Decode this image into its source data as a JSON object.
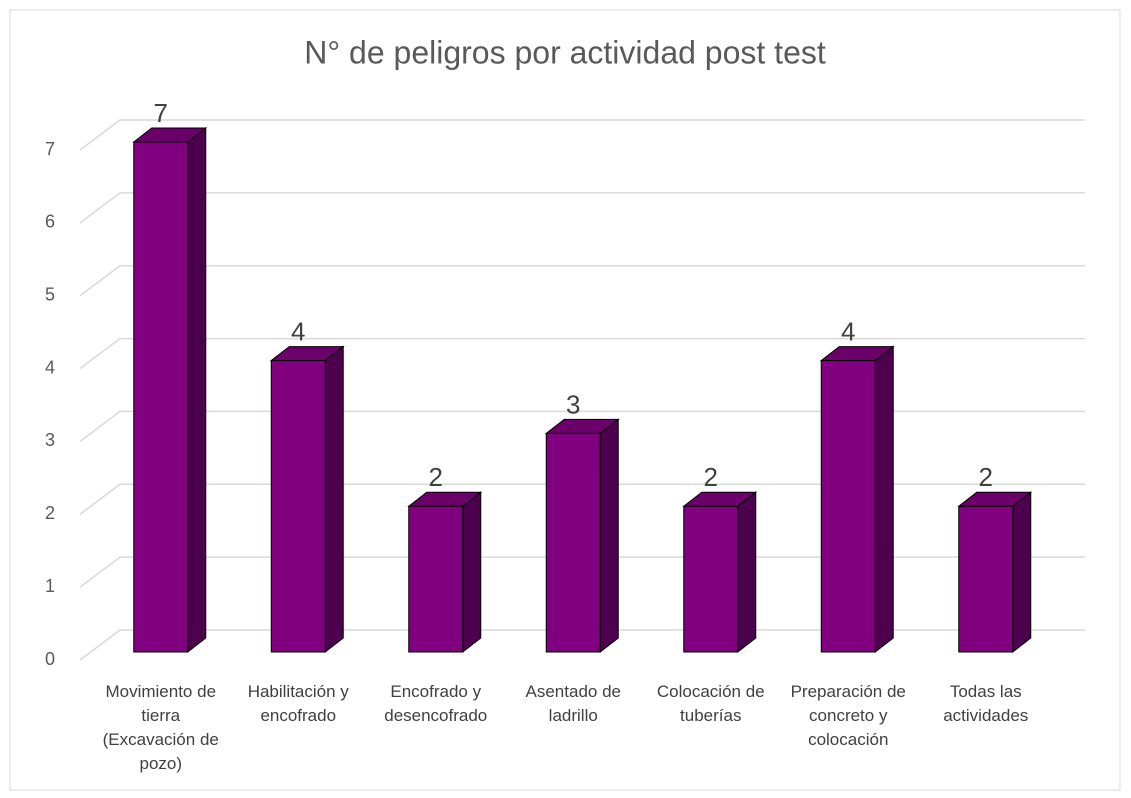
{
  "chart_data": {
    "type": "bar3d",
    "title": "N° de peligros por actividad post test",
    "categories": [
      "Movimiento de tierra (Excavación de pozo)",
      "Habilitación y encofrado",
      "Encofrado y desencofrado",
      "Asentado de ladrillo",
      "Colocación de tuberías",
      "Preparación de concreto y colocación",
      "Todas las actividades"
    ],
    "values": [
      7,
      4,
      2,
      3,
      2,
      4,
      2
    ],
    "color": "#800080",
    "side_color": "#4d004d",
    "top_color": "#6b006b",
    "ylim": [
      0,
      7
    ],
    "yticks": [
      0,
      1,
      2,
      3,
      4,
      5,
      6,
      7
    ],
    "grid": true
  }
}
